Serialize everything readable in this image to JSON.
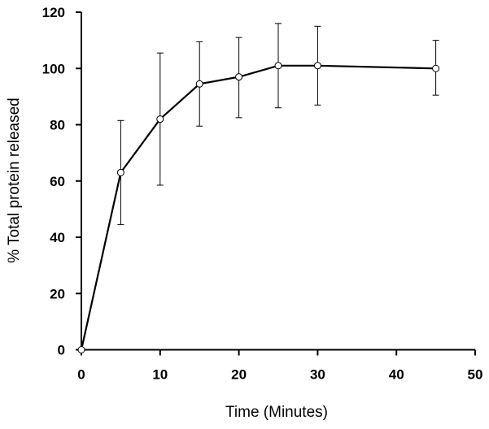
{
  "chart_data": {
    "type": "line",
    "title": "",
    "xlabel": "Time (Minutes)",
    "ylabel": "% Total protein released",
    "xlim": [
      0,
      50
    ],
    "ylim": [
      0,
      120
    ],
    "xticks": [
      0,
      10,
      20,
      30,
      40,
      50
    ],
    "yticks": [
      0,
      20,
      40,
      60,
      80,
      100,
      120
    ],
    "xtick_labels": [
      "0",
      "10",
      "20",
      "30",
      "40",
      "50"
    ],
    "ytick_labels": [
      "0",
      "20",
      "40",
      "60",
      "80",
      "100",
      "120"
    ],
    "grid": false,
    "legend": "none",
    "series": [
      {
        "x": [
          0,
          5,
          10,
          15,
          20,
          25,
          30,
          45
        ],
        "y": [
          0,
          63,
          82,
          94.5,
          97,
          101,
          101,
          100
        ],
        "error_upper": [
          0,
          81.5,
          105.5,
          109.5,
          111,
          116,
          115,
          110
        ],
        "error_lower": [
          0,
          44.5,
          58.5,
          79.5,
          82.5,
          86,
          87,
          90.5
        ],
        "line_color": "#000000",
        "marker": "open-circle",
        "marker_fill": "#ffffff"
      }
    ]
  }
}
